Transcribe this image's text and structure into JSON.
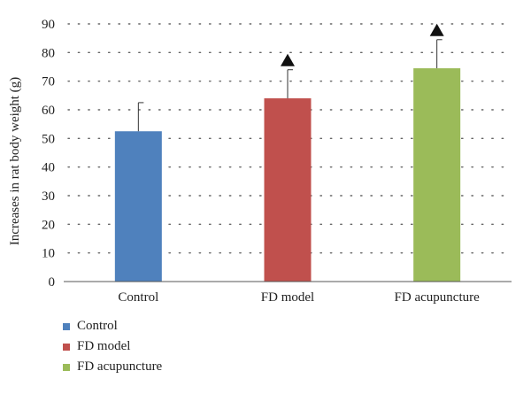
{
  "chart_data": {
    "type": "bar",
    "title": "",
    "xlabel": "",
    "ylabel": "Increases in rat body weight (g)",
    "ylim": [
      0,
      90
    ],
    "yticks": [
      0,
      10,
      20,
      30,
      40,
      50,
      60,
      70,
      80,
      90
    ],
    "grid": true,
    "legend_position": "bottom-left",
    "categories": [
      "Control",
      "FD model",
      "FD acupuncture"
    ],
    "values": [
      52.5,
      64,
      74.5
    ],
    "error_upper": [
      10,
      10,
      10
    ],
    "significance_markers": [
      false,
      true,
      true
    ],
    "colors": [
      "#4f81bd",
      "#c0504d",
      "#9bbb59"
    ],
    "legend": [
      {
        "label": "Control",
        "color": "#4f81bd"
      },
      {
        "label": "FD model",
        "color": "#c0504d"
      },
      {
        "label": "FD acupuncture",
        "color": "#9bbb59"
      }
    ]
  }
}
